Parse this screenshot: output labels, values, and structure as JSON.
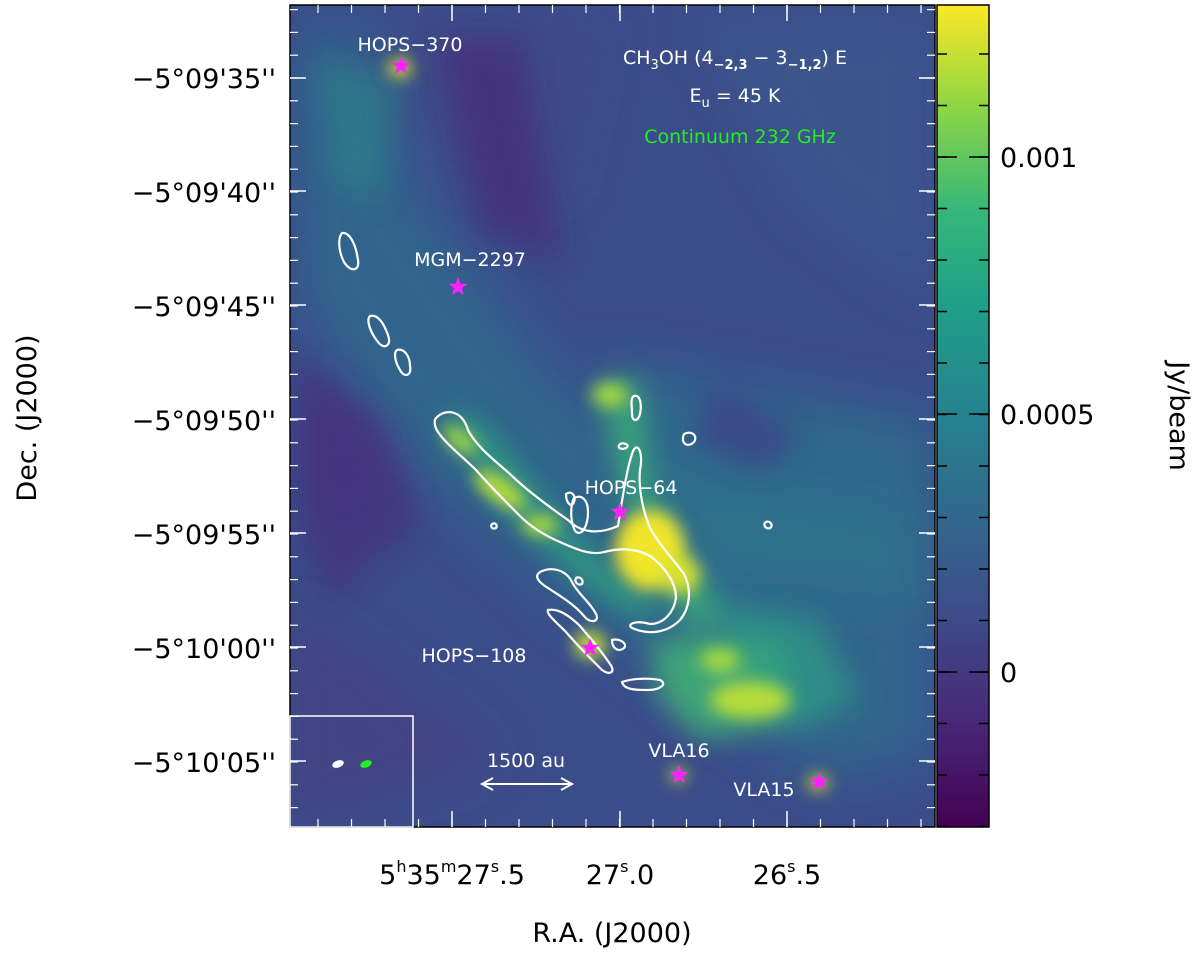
{
  "figure": {
    "map": {
      "title_line1_prefix": "CH",
      "title_line1_sub3": "3",
      "title_line1_mid": "OH (4",
      "title_line1_sub_a": "−2,3",
      "title_line1_dash": " − 3",
      "title_line1_sub_b": "−1,2",
      "title_line1_end": ") E",
      "eu_prefix": "E",
      "eu_sub": "u",
      "eu_value": " = 45 K",
      "continuum_label": "Continuum 232 GHz",
      "scale_bar_label": "1500 au",
      "colors": {
        "star": "#ff22ff",
        "contour": "#ffffff",
        "continuum_text": "#22ee22",
        "beam_line": "#ffffff",
        "beam_cont": "#22ee22"
      }
    },
    "sources": [
      {
        "name": "HOPS−370"
      },
      {
        "name": "MGM−2297"
      },
      {
        "name": "HOPS−64"
      },
      {
        "name": "HOPS−108"
      },
      {
        "name": "VLA16"
      },
      {
        "name": "VLA15"
      }
    ],
    "y_axis": {
      "label": "Dec. (J2000)",
      "ticks": [
        "−5°09'35''",
        "−5°09'40''",
        "−5°09'45''",
        "−5°09'50''",
        "−5°09'55''",
        "−5°10'00''",
        "−5°10'05''"
      ]
    },
    "x_axis": {
      "label": "R.A. (J2000)",
      "tick_main_1": "5",
      "tick_sup_h": "h",
      "tick_main_2": "35",
      "tick_sup_m": "m",
      "tick_main_3": "27",
      "tick_sup_s": "s",
      "tick_main_4": ".5",
      "tick_b_main": "27",
      "tick_b_sup": "s",
      "tick_b_end": ".0",
      "tick_c_main": "26",
      "tick_c_sup": "s",
      "tick_c_end": ".5"
    },
    "colorbar": {
      "label": "Jy/beam",
      "ticks": [
        "0.001",
        "0.0005",
        "0"
      ],
      "colormap": "viridis"
    }
  }
}
